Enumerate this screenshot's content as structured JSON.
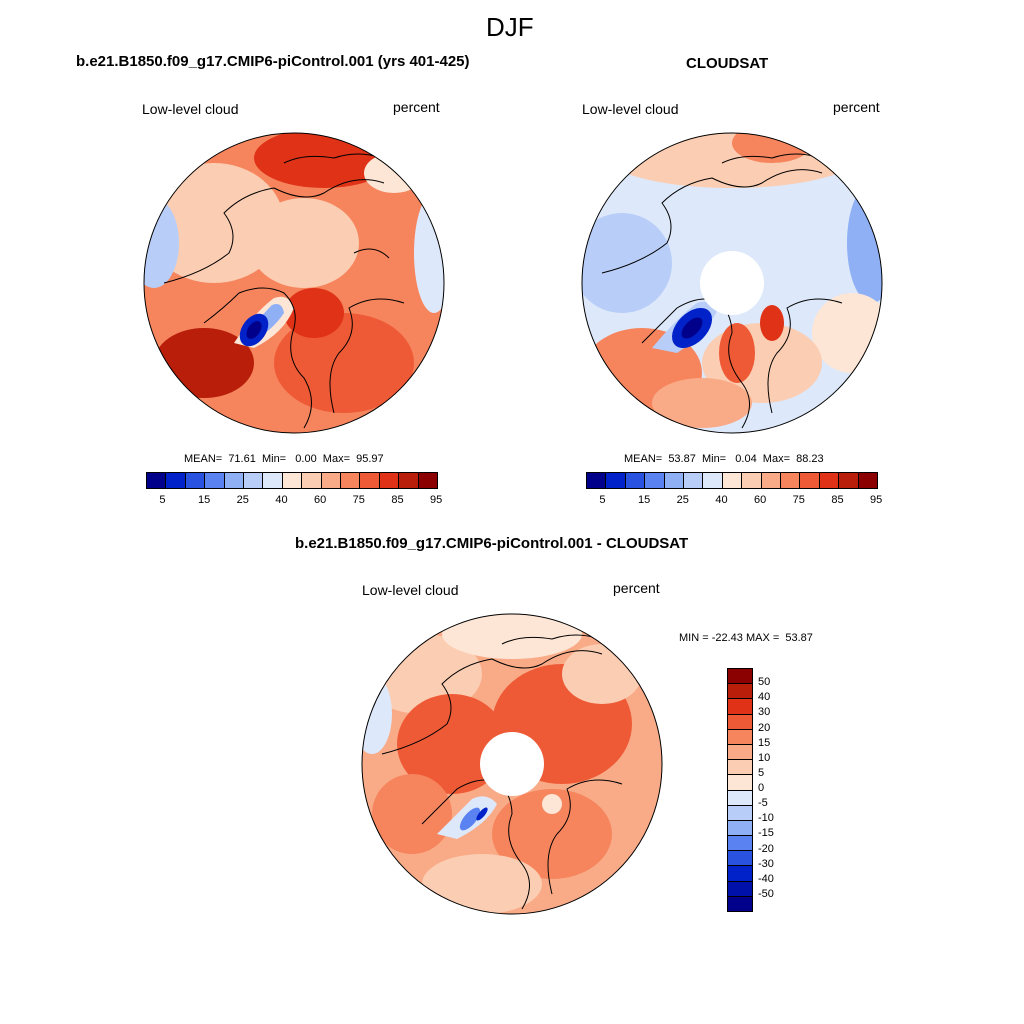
{
  "figure": {
    "title": "DJF"
  },
  "panels": [
    {
      "id": "model",
      "title": "b.e21.B1850.f09_g17.CMIP6-piControl.001 (yrs 401-425)",
      "left_label": "Low-level cloud",
      "right_label": "percent",
      "stats": "MEAN=  71.61  Min=   0.00  Max=  95.97",
      "has_polar_hole": false
    },
    {
      "id": "obs",
      "title": "CLOUDSAT",
      "left_label": "Low-level cloud",
      "right_label": "percent",
      "stats": "MEAN=  53.87  Min=   0.04  Max=  88.23",
      "has_polar_hole": true
    },
    {
      "id": "diff",
      "title": "b.e21.B1850.f09_g17.CMIP6-piControl.001 - CLOUDSAT",
      "left_label": "Low-level cloud",
      "right_label": "percent",
      "stats": "MIN = -22.43 MAX =  53.87",
      "has_polar_hole": true
    }
  ],
  "colorbars": {
    "absolute": {
      "colors": [
        "#00008b",
        "#0022c8",
        "#2a52e0",
        "#5a82f0",
        "#8fb0f5",
        "#b8cef8",
        "#dde8fa",
        "#fde6d6",
        "#fbcdb2",
        "#f9ab88",
        "#f6855e",
        "#ef5a36",
        "#df3216",
        "#b81e0a",
        "#8b0000"
      ],
      "tick_labels": [
        "5",
        "15",
        "25",
        "40",
        "60",
        "75",
        "85",
        "95"
      ]
    },
    "difference": {
      "colors": [
        "#8b0000",
        "#b81e0a",
        "#df3216",
        "#ef5a36",
        "#f6855e",
        "#f9ab88",
        "#fbcdb2",
        "#fde6d6",
        "#dde8fa",
        "#b8cef8",
        "#8fb0f5",
        "#5a82f0",
        "#2a52e0",
        "#0022c8",
        "#0011aa",
        "#00008b"
      ],
      "tick_labels": [
        "50",
        "40",
        "30",
        "20",
        "15",
        "10",
        "5",
        "0",
        "-5",
        "-10",
        "-15",
        "-20",
        "-30",
        "-40",
        "-50"
      ]
    }
  }
}
